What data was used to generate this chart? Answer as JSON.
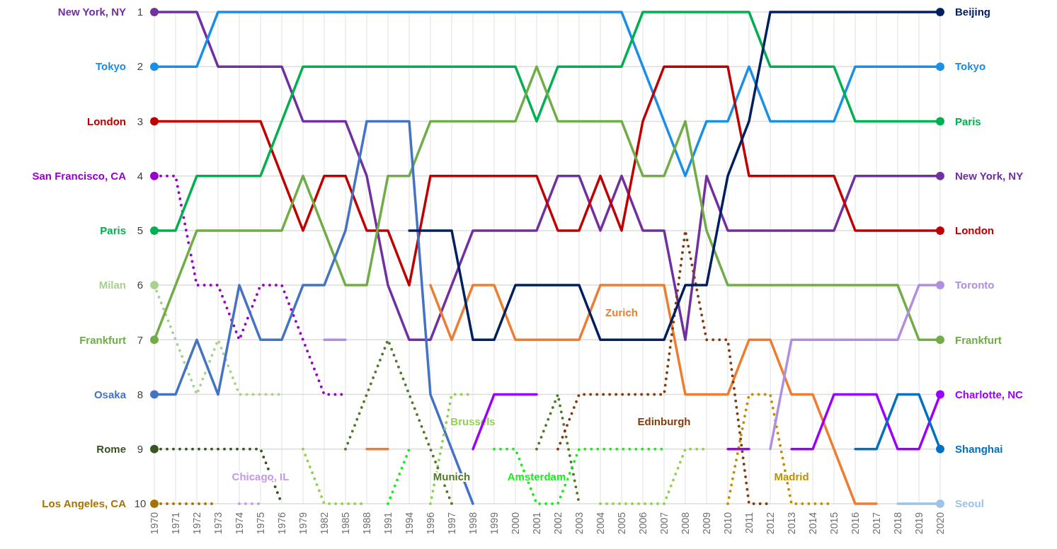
{
  "chart_data": {
    "type": "line",
    "categories": [
      "1970",
      "1971",
      "1972",
      "1973",
      "1974",
      "1975",
      "1976",
      "1979",
      "1982",
      "1985",
      "1988",
      "1991",
      "1994",
      "1996",
      "1997",
      "1998",
      "1999",
      "2000",
      "2001",
      "2002",
      "2003",
      "2004",
      "2005",
      "2006",
      "2007",
      "2008",
      "2009",
      "2010",
      "2011",
      "2012",
      "2013",
      "2014",
      "2015",
      "2016",
      "2017",
      "2018",
      "2019",
      "2020"
    ],
    "ylim": [
      10,
      1
    ],
    "yticks": [
      1,
      2,
      3,
      4,
      5,
      6,
      7,
      8,
      9,
      10
    ],
    "grid": true,
    "series": [
      {
        "name": "New York, NY",
        "color": "#7030a0",
        "values": [
          1,
          1,
          1,
          2,
          2,
          2,
          2,
          3,
          3,
          3,
          4,
          6,
          7,
          7,
          6,
          5,
          5,
          5,
          5,
          4,
          4,
          5,
          4,
          5,
          5,
          7,
          4,
          5,
          5,
          5,
          5,
          5,
          5,
          4,
          4,
          4,
          4,
          4
        ]
      },
      {
        "name": "Tokyo",
        "color": "#1a8fe8",
        "values": [
          2,
          2,
          2,
          1,
          1,
          1,
          1,
          1,
          1,
          1,
          1,
          1,
          1,
          1,
          1,
          1,
          1,
          1,
          1,
          1,
          1,
          1,
          1,
          2,
          3,
          4,
          3,
          3,
          2,
          3,
          3,
          3,
          3,
          2,
          2,
          2,
          2,
          2
        ]
      },
      {
        "name": "London",
        "color": "#c00000",
        "values": [
          3,
          3,
          3,
          3,
          3,
          3,
          4,
          5,
          4,
          4,
          5,
          5,
          6,
          4,
          4,
          4,
          4,
          4,
          4,
          5,
          5,
          4,
          5,
          3,
          2,
          2,
          2,
          2,
          4,
          4,
          4,
          4,
          4,
          5,
          5,
          5,
          5,
          5
        ]
      },
      {
        "name": "San Francisco, CA",
        "color": "#9900cc",
        "line_style": "dotted",
        "values": [
          4,
          4,
          6,
          6,
          7,
          6,
          6,
          7,
          8,
          8,
          null,
          null,
          null,
          null,
          null,
          null,
          null,
          null,
          null,
          null,
          null,
          null,
          null,
          null,
          null,
          null,
          null,
          null,
          null,
          null,
          null,
          null,
          null,
          null,
          null,
          null,
          null,
          null
        ]
      },
      {
        "name": "Paris",
        "color": "#00b050",
        "values": [
          5,
          5,
          4,
          4,
          4,
          4,
          3,
          2,
          2,
          2,
          2,
          2,
          2,
          2,
          2,
          2,
          2,
          2,
          3,
          2,
          2,
          2,
          2,
          1,
          1,
          1,
          1,
          1,
          1,
          2,
          2,
          2,
          2,
          3,
          3,
          3,
          3,
          3
        ]
      },
      {
        "name": "Milan",
        "color": "#a9d18e",
        "line_style": "dotted",
        "values": [
          6,
          7,
          8,
          7,
          8,
          8,
          8,
          null,
          null,
          null,
          null,
          null,
          null,
          null,
          null,
          null,
          null,
          null,
          null,
          null,
          null,
          null,
          null,
          null,
          null,
          null,
          null,
          null,
          null,
          null,
          null,
          null,
          null,
          null,
          null,
          null,
          null,
          null
        ]
      },
      {
        "name": "Frankfurt",
        "color": "#70ad47",
        "values": [
          7,
          6,
          5,
          5,
          5,
          5,
          5,
          4,
          5,
          6,
          6,
          4,
          4,
          3,
          3,
          3,
          3,
          3,
          2,
          3,
          3,
          3,
          3,
          4,
          4,
          3,
          5,
          6,
          6,
          6,
          6,
          6,
          6,
          6,
          6,
          6,
          7,
          7
        ]
      },
      {
        "name": "Osaka",
        "color": "#4472c4",
        "values": [
          8,
          8,
          7,
          8,
          6,
          7,
          7,
          6,
          6,
          5,
          3,
          3,
          3,
          8,
          9,
          10,
          null,
          null,
          null,
          null,
          null,
          null,
          null,
          null,
          null,
          null,
          null,
          null,
          null,
          null,
          null,
          null,
          null,
          null,
          null,
          null,
          null,
          null
        ]
      },
      {
        "name": "Rome",
        "color": "#375623",
        "line_style": "dotted",
        "values": [
          9,
          9,
          9,
          9,
          9,
          9,
          10,
          null,
          null,
          null,
          null,
          null,
          null,
          null,
          null,
          null,
          null,
          null,
          null,
          null,
          null,
          null,
          null,
          null,
          null,
          null,
          null,
          null,
          null,
          null,
          null,
          null,
          null,
          null,
          null,
          null,
          null,
          null
        ]
      },
      {
        "name": "Los Angeles, CA",
        "color": "#a57400",
        "line_style": "dotted",
        "values": [
          10,
          10,
          10,
          10,
          null,
          null,
          null,
          null,
          null,
          null,
          null,
          null,
          null,
          null,
          null,
          null,
          null,
          null,
          null,
          null,
          null,
          null,
          null,
          null,
          null,
          null,
          null,
          null,
          null,
          null,
          null,
          null,
          null,
          null,
          null,
          null,
          null,
          null
        ]
      },
      {
        "name": "Chicago, IL",
        "color": "#c39be8",
        "line_style": "dotted",
        "values": [
          null,
          null,
          null,
          null,
          10,
          10,
          null,
          null,
          null,
          null,
          null,
          null,
          null,
          null,
          null,
          null,
          null,
          null,
          null,
          null,
          null,
          null,
          null,
          null,
          null,
          null,
          null,
          null,
          null,
          null,
          null,
          null,
          null,
          null,
          null,
          null,
          null,
          null
        ]
      },
      {
        "name": "Brussels",
        "color": "#92d050",
        "line_style": "dotted",
        "values": [
          null,
          null,
          null,
          null,
          null,
          null,
          null,
          9,
          10,
          10,
          10,
          null,
          null,
          10,
          8,
          8,
          null,
          null,
          null,
          null,
          null,
          10,
          10,
          10,
          10,
          9,
          9,
          null,
          null,
          null,
          null,
          null,
          null,
          null,
          null,
          null,
          null,
          null
        ]
      },
      {
        "name": "Munich",
        "color": "#4f7a28",
        "line_style": "dotted",
        "values": [
          null,
          null,
          null,
          null,
          null,
          null,
          null,
          null,
          null,
          9,
          8,
          7,
          8,
          9,
          10,
          null,
          null,
          null,
          9,
          8,
          10,
          null,
          null,
          null,
          null,
          null,
          null,
          null,
          null,
          null,
          null,
          null,
          null,
          null,
          null,
          null,
          null,
          null
        ]
      },
      {
        "name": "Amsterdam",
        "color": "#1aee1a",
        "line_style": "dotted",
        "values": [
          null,
          null,
          null,
          null,
          null,
          null,
          null,
          null,
          null,
          null,
          null,
          10,
          9,
          null,
          null,
          null,
          9,
          9,
          10,
          10,
          9,
          9,
          9,
          9,
          9,
          null,
          null,
          null,
          null,
          null,
          null,
          null,
          null,
          null,
          null,
          null,
          null,
          null
        ]
      },
      {
        "name": "Zurich",
        "color": "#ed7d31",
        "values": [
          null,
          null,
          null,
          null,
          null,
          null,
          null,
          null,
          null,
          null,
          9,
          9,
          null,
          6,
          7,
          6,
          6,
          7,
          7,
          7,
          7,
          6,
          6,
          6,
          6,
          8,
          8,
          8,
          7,
          7,
          8,
          8,
          9,
          10,
          10,
          null,
          null,
          null
        ]
      },
      {
        "name": "Edinburgh",
        "color": "#843c0c",
        "line_style": "dotted",
        "values": [
          null,
          null,
          null,
          null,
          null,
          null,
          null,
          null,
          null,
          null,
          null,
          null,
          null,
          null,
          null,
          null,
          null,
          null,
          null,
          9,
          8,
          8,
          8,
          8,
          8,
          5,
          7,
          7,
          10,
          10,
          null,
          null,
          null,
          null,
          null,
          null,
          null,
          null
        ]
      },
      {
        "name": "Madrid",
        "color": "#bf9000",
        "line_style": "dotted",
        "values": [
          null,
          null,
          null,
          null,
          null,
          null,
          null,
          null,
          null,
          null,
          null,
          null,
          null,
          null,
          null,
          null,
          null,
          null,
          null,
          null,
          null,
          null,
          null,
          null,
          null,
          null,
          null,
          10,
          8,
          8,
          10,
          10,
          10,
          null,
          null,
          null,
          null,
          null
        ]
      },
      {
        "name": "Beijing",
        "color": "#002060",
        "values": [
          null,
          null,
          null,
          null,
          null,
          null,
          null,
          null,
          null,
          null,
          null,
          null,
          5,
          5,
          5,
          7,
          7,
          6,
          6,
          6,
          6,
          7,
          7,
          7,
          7,
          6,
          6,
          4,
          3,
          1,
          1,
          1,
          1,
          1,
          1,
          1,
          1,
          1
        ]
      },
      {
        "name": "Toronto",
        "color": "#b18fe0",
        "values": [
          null,
          null,
          null,
          null,
          null,
          null,
          null,
          null,
          7,
          7,
          null,
          null,
          null,
          null,
          null,
          null,
          null,
          null,
          null,
          null,
          null,
          null,
          null,
          null,
          null,
          null,
          null,
          null,
          null,
          9,
          7,
          7,
          7,
          7,
          7,
          7,
          6,
          6
        ]
      },
      {
        "name": "Charlotte, NC",
        "color": "#9900ff",
        "values": [
          null,
          null,
          null,
          null,
          null,
          null,
          null,
          null,
          null,
          null,
          null,
          null,
          null,
          null,
          null,
          9,
          8,
          8,
          8,
          null,
          null,
          null,
          null,
          null,
          null,
          null,
          null,
          9,
          9,
          null,
          9,
          9,
          8,
          8,
          8,
          9,
          9,
          8
        ]
      },
      {
        "name": "Shanghai",
        "color": "#0070c0",
        "values": [
          null,
          null,
          null,
          null,
          null,
          null,
          null,
          null,
          null,
          null,
          null,
          null,
          null,
          null,
          null,
          null,
          null,
          null,
          null,
          null,
          null,
          null,
          null,
          null,
          null,
          null,
          null,
          null,
          null,
          null,
          null,
          null,
          null,
          9,
          9,
          8,
          8,
          9
        ]
      },
      {
        "name": "Seoul",
        "color": "#9dc3e6",
        "values": [
          null,
          null,
          null,
          null,
          null,
          null,
          null,
          null,
          null,
          null,
          null,
          null,
          null,
          null,
          null,
          null,
          null,
          null,
          null,
          null,
          null,
          null,
          null,
          null,
          null,
          null,
          null,
          null,
          null,
          null,
          null,
          null,
          null,
          null,
          null,
          10,
          10,
          10
        ]
      }
    ]
  }
}
